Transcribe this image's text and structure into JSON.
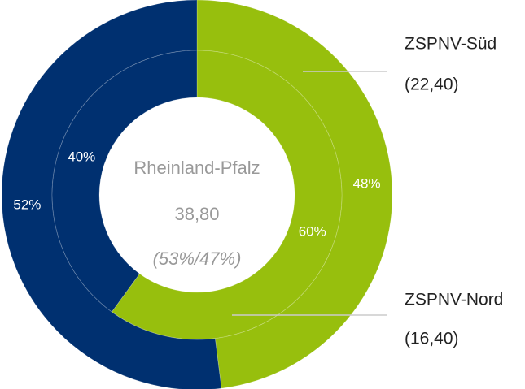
{
  "chart_data": {
    "type": "donut",
    "colors": [
      "#97bf0d",
      "#003070"
    ],
    "center": {
      "title": "Rheinland-Pfalz",
      "value": "38,80",
      "note": "(53%/47%)"
    },
    "rings": [
      {
        "label": "ZSPNV-Süd",
        "total": "(22,40)",
        "values": [
          48,
          52
        ],
        "value_labels": [
          "48%",
          "52%"
        ]
      },
      {
        "label": "ZSPNV-Nord",
        "total": "(16,40)",
        "values": [
          60,
          40
        ],
        "value_labels": [
          "60%",
          "40%"
        ]
      }
    ]
  }
}
